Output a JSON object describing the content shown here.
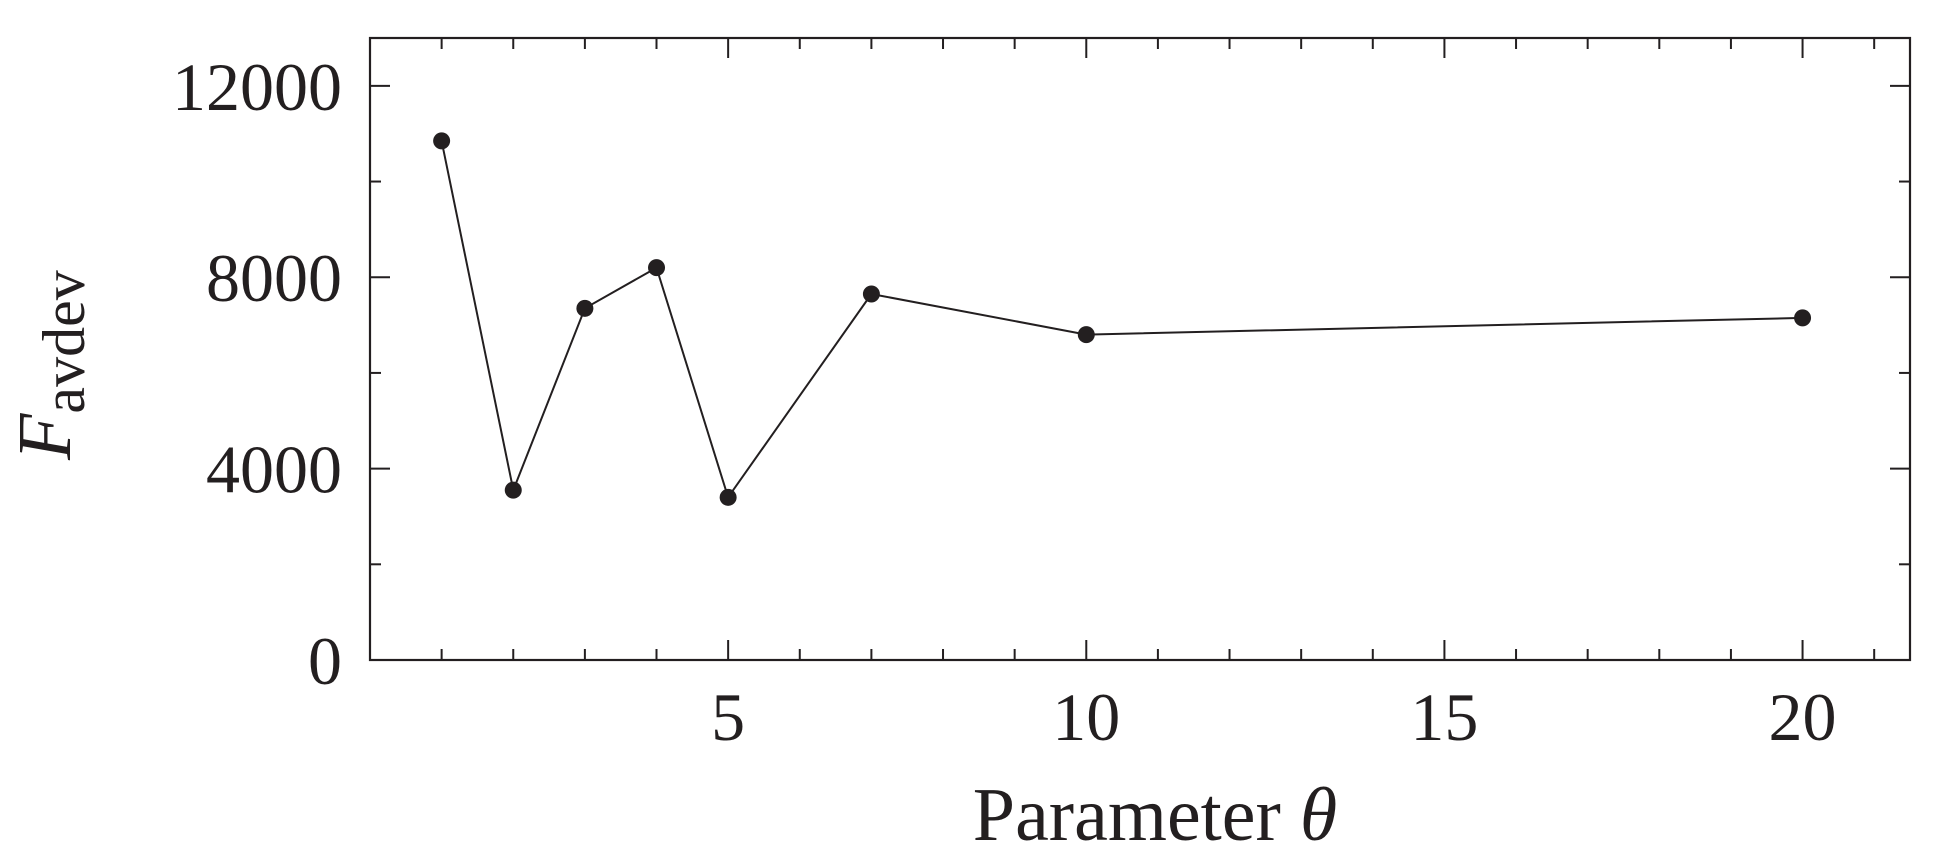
{
  "chart_data": {
    "type": "line",
    "title": "",
    "xlabel": {
      "text": "Parameter ",
      "symbol": "θ"
    },
    "ylabel": {
      "symbol": "F",
      "subscript": "avdev"
    },
    "xlim": [
      0,
      21.5
    ],
    "ylim": [
      0,
      13000
    ],
    "x_ticks": [
      5,
      10,
      15,
      20
    ],
    "x_tick_labels": [
      "5",
      "10",
      "15",
      "20"
    ],
    "x_minor_step": 1,
    "y_ticks": [
      0,
      4000,
      8000,
      12000
    ],
    "y_tick_labels": [
      "0",
      "4000",
      "8000",
      "12000"
    ],
    "y_minor_step": 2000,
    "grid": false,
    "legend": "none",
    "series": [
      {
        "x": [
          1,
          2,
          3,
          4,
          5,
          7,
          10,
          20
        ],
        "values": [
          10850,
          3550,
          7350,
          8200,
          3400,
          7650,
          6800,
          7150
        ]
      }
    ],
    "colors": {
      "line": "#231f20",
      "marker": "#231f20",
      "axis": "#231f20"
    }
  }
}
